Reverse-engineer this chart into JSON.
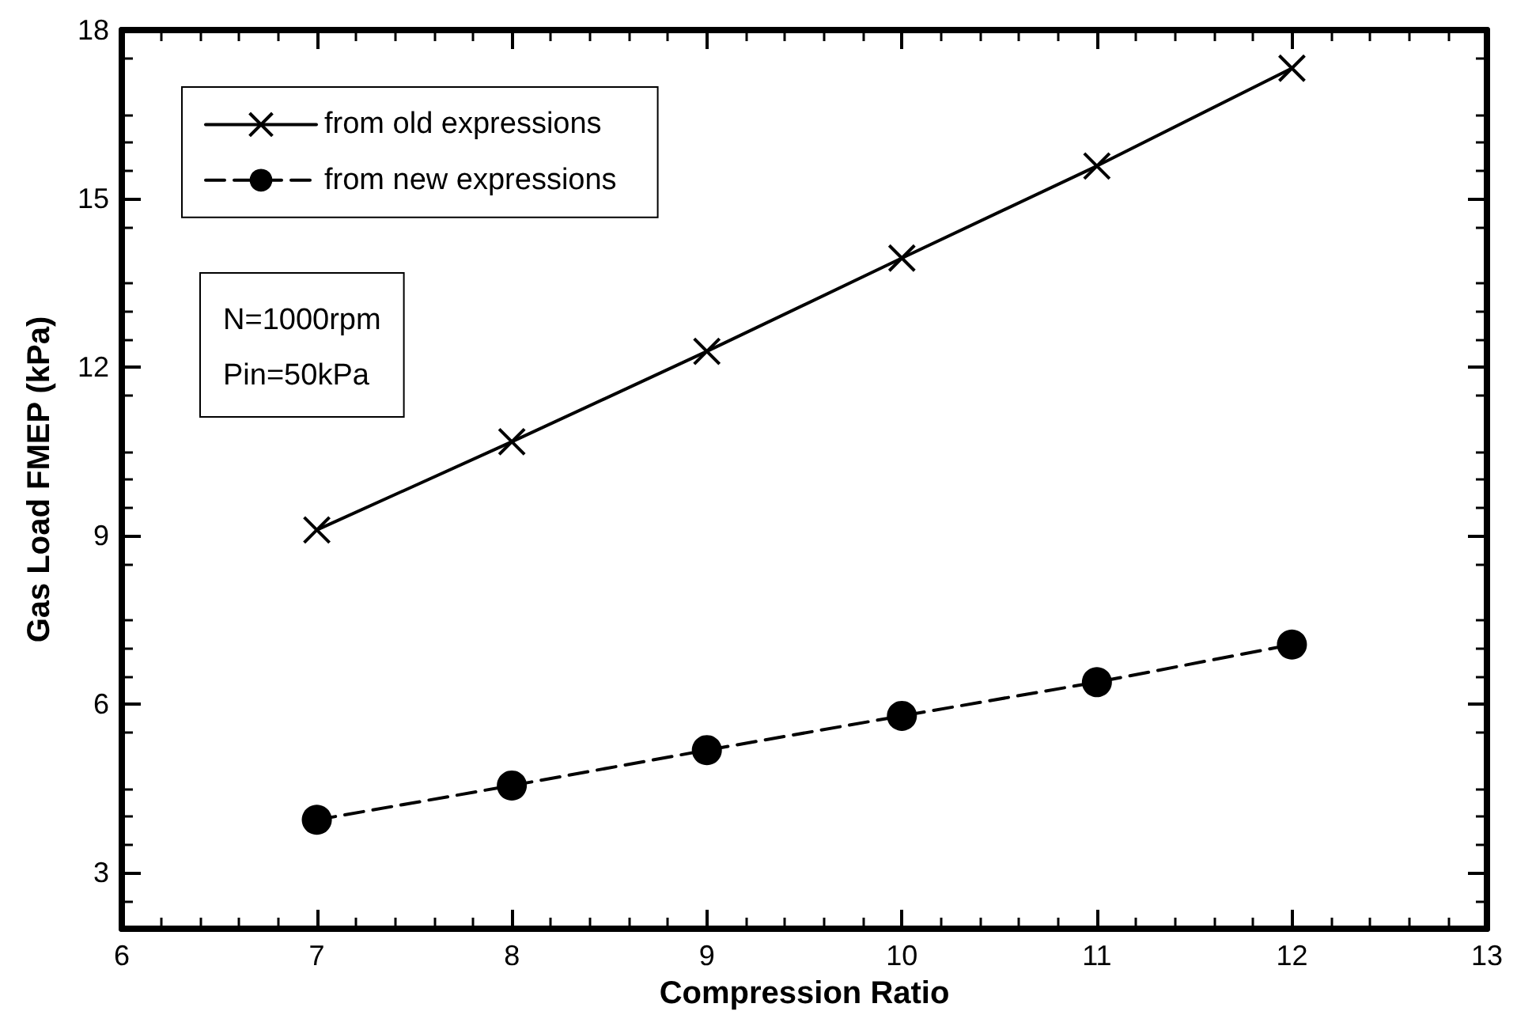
{
  "chart_data": {
    "type": "line",
    "xlabel": "Compression Ratio",
    "ylabel": "Gas Load FMEP (kPa)",
    "x": [
      7,
      8,
      9,
      10,
      11,
      12
    ],
    "series": [
      {
        "name": "from old expressions",
        "color": "#000000",
        "marker": "cross",
        "line_style": "solid",
        "values": [
          9.1,
          10.67,
          12.28,
          13.94,
          15.58,
          17.32
        ]
      },
      {
        "name": "from new expressions",
        "color": "#000000",
        "marker": "circle",
        "line_style": "dashed",
        "values": [
          3.94,
          4.55,
          5.18,
          5.79,
          6.39,
          7.06
        ]
      }
    ],
    "xlim": [
      6,
      13
    ],
    "xticks": [
      6,
      7,
      8,
      9,
      10,
      11,
      12,
      13
    ],
    "ylim": [
      2,
      18
    ],
    "yticks": [
      3,
      6,
      9,
      12,
      15,
      18
    ],
    "annotations": [
      "N=1000rpm\nPin=50kPa"
    ],
    "legend": "top left",
    "grid": false
  }
}
